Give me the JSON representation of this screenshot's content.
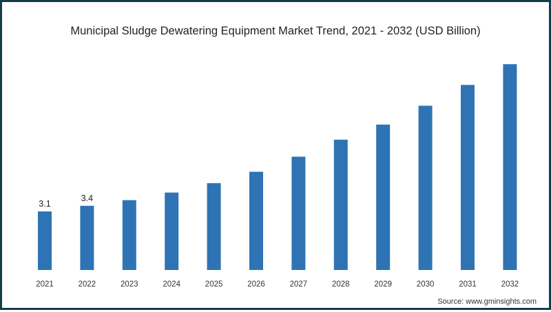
{
  "chart_data": {
    "type": "bar",
    "title": "Municipal Sludge Dewatering Equipment Market Trend, 2021 - 2032 (USD Billion)",
    "xlabel": "",
    "ylabel": "",
    "categories": [
      "2021",
      "2022",
      "2023",
      "2024",
      "2025",
      "2026",
      "2027",
      "2028",
      "2029",
      "2030",
      "2031",
      "2032"
    ],
    "values": [
      3.1,
      3.4,
      3.7,
      4.1,
      4.6,
      5.2,
      6.0,
      6.9,
      7.7,
      8.7,
      9.8,
      10.9
    ],
    "data_labels": [
      "3.1",
      "3.4",
      "",
      "",
      "",
      "",
      "",
      "",
      "",
      "",
      "",
      ""
    ],
    "ylim": [
      0,
      12
    ],
    "grid": false,
    "legend": "none",
    "bar_color": "#2e74b5",
    "source": "Source: www.gminsights.com"
  },
  "colors": {
    "border": "#143d4b",
    "bar": "#2e74b5",
    "text": "#222222"
  }
}
